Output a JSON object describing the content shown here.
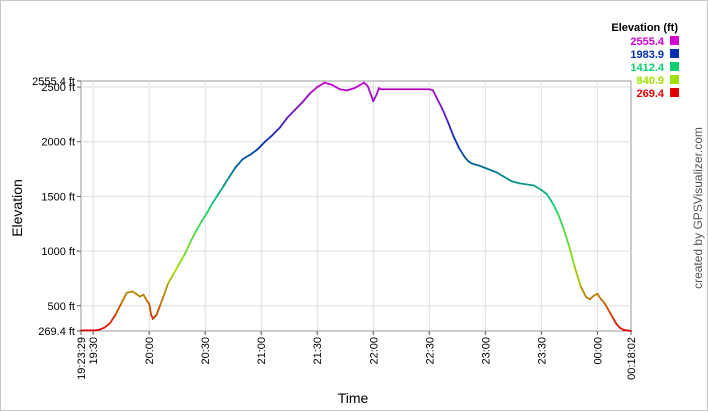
{
  "chart_data": {
    "type": "line",
    "xlabel": "Time",
    "ylabel": "Elevation",
    "credit": "created by GPSVisualizer.com",
    "legend_title": "Elevation (ft)",
    "legend": [
      {
        "label": "2555.4",
        "color": "#d000d0"
      },
      {
        "label": "1983.9",
        "color": "#0030b0"
      },
      {
        "label": "1412.4",
        "color": "#10d070"
      },
      {
        "label": "840.9",
        "color": "#a0e000"
      },
      {
        "label": "269.4",
        "color": "#e00000"
      }
    ],
    "color_scale": [
      {
        "value": 269.4,
        "color": "#e00000"
      },
      {
        "value": 840.9,
        "color": "#a0e000"
      },
      {
        "value": 1412.4,
        "color": "#10d070"
      },
      {
        "value": 1983.9,
        "color": "#0030b0"
      },
      {
        "value": 2555.4,
        "color": "#d000d0"
      }
    ],
    "xlim": [
      "19:23:29",
      "00:18:02"
    ],
    "ylim": [
      269.4,
      2555.4
    ],
    "x_ticks": [
      "19:23:29",
      "19:30",
      "20:00",
      "20:30",
      "21:00",
      "21:30",
      "22:00",
      "22:30",
      "23:00",
      "23:30",
      "00:00",
      "00:18:02"
    ],
    "y_ticks": [
      {
        "value": 269.4,
        "label": "269.4 ft"
      },
      {
        "value": 500,
        "label": "500 ft"
      },
      {
        "value": 1000,
        "label": "1000 ft"
      },
      {
        "value": 1500,
        "label": "1500 ft"
      },
      {
        "value": 2000,
        "label": "2000 ft"
      },
      {
        "value": 2500,
        "label": "2500 ft"
      },
      {
        "value": 2555.4,
        "label": "2555.4 ft"
      }
    ],
    "series": [
      {
        "x": [
          "19:23:29",
          "19:30",
          "19:33",
          "19:36",
          "19:39",
          "19:42",
          "19:45",
          "19:48",
          "19:51",
          "19:53",
          "19:55",
          "19:57",
          "19:59",
          "20:00",
          "20:01",
          "20:02",
          "20:04",
          "20:06",
          "20:08",
          "20:10",
          "20:13",
          "20:16",
          "20:19",
          "20:22",
          "20:25",
          "20:28",
          "20:31",
          "20:34",
          "20:37",
          "20:40",
          "20:43",
          "20:46",
          "20:50",
          "20:54",
          "20:58",
          "21:02",
          "21:06",
          "21:10",
          "21:14",
          "21:18",
          "21:22",
          "21:26",
          "21:30",
          "21:34",
          "21:38",
          "21:42",
          "21:46",
          "21:50",
          "21:53",
          "21:55",
          "21:57",
          "21:59",
          "22:00",
          "22:02",
          "22:03",
          "22:04",
          "22:05",
          "22:07",
          "22:10",
          "22:14",
          "22:18",
          "22:22",
          "22:26",
          "22:30",
          "22:32",
          "22:34",
          "22:37",
          "22:40",
          "22:43",
          "22:46",
          "22:49",
          "22:51",
          "22:53",
          "22:55",
          "22:57",
          "23:00",
          "23:03",
          "23:06",
          "23:10",
          "23:14",
          "23:18",
          "23:22",
          "23:26",
          "23:30",
          "23:33",
          "23:36",
          "23:39",
          "23:42",
          "23:45",
          "23:48",
          "23:51",
          "23:54",
          "23:56",
          "23:58",
          "00:00",
          "00:02",
          "00:04",
          "00:06",
          "00:08",
          "00:10",
          "00:12",
          "00:14",
          "00:16",
          "00:18:02"
        ],
        "y": [
          275,
          275,
          280,
          300,
          340,
          420,
          520,
          620,
          630,
          610,
          585,
          600,
          540,
          520,
          420,
          380,
          420,
          510,
          600,
          700,
          790,
          880,
          970,
          1080,
          1180,
          1270,
          1350,
          1440,
          1520,
          1600,
          1680,
          1760,
          1840,
          1880,
          1930,
          2000,
          2060,
          2130,
          2220,
          2290,
          2360,
          2440,
          2500,
          2540,
          2520,
          2480,
          2470,
          2490,
          2520,
          2540,
          2510,
          2420,
          2370,
          2440,
          2490,
          2480,
          2480,
          2480,
          2480,
          2480,
          2480,
          2480,
          2480,
          2480,
          2470,
          2400,
          2300,
          2180,
          2050,
          1940,
          1860,
          1820,
          1800,
          1790,
          1780,
          1760,
          1740,
          1720,
          1680,
          1640,
          1620,
          1610,
          1600,
          1560,
          1520,
          1440,
          1340,
          1200,
          1040,
          850,
          680,
          580,
          560,
          590,
          610,
          560,
          520,
          460,
          400,
          340,
          300,
          280,
          275,
          270
        ]
      }
    ]
  }
}
